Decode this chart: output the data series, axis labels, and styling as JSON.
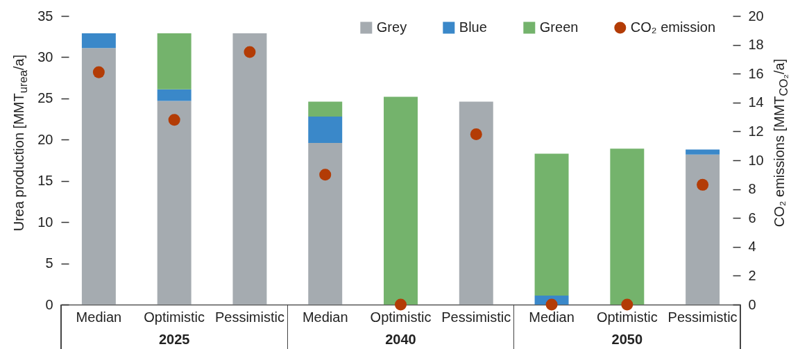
{
  "chart_data": {
    "type": "bar",
    "stacked": true,
    "categories": [
      "Median",
      "Optimistic",
      "Pessimistic",
      "Median",
      "Optimistic",
      "Pessimistic",
      "Median",
      "Optimistic",
      "Pessimistic"
    ],
    "series": [
      {
        "name": "Grey",
        "color": "#a5abb0",
        "values": [
          31.1,
          24.7,
          32.9,
          19.6,
          null,
          24.6,
          null,
          null,
          18.2
        ]
      },
      {
        "name": "Blue",
        "color": "#3a88c9",
        "values": [
          1.8,
          1.4,
          null,
          3.2,
          null,
          null,
          1.1,
          null,
          0.6
        ]
      },
      {
        "name": "Green",
        "color": "#74b36c",
        "values": [
          null,
          6.8,
          null,
          1.8,
          25.2,
          null,
          17.2,
          18.9,
          null
        ]
      },
      {
        "name": "CO₂ emission",
        "type": "scatter",
        "axis": "y2",
        "color": "#b33c06",
        "values": [
          16.1,
          12.8,
          17.5,
          9.0,
          0,
          11.8,
          0,
          0,
          8.3
        ]
      }
    ],
    "ylabel": "Urea production [MMT$_{urea}$/a]",
    "y2label": "CO₂ emissions [MMT$_{CO₂}$/a]",
    "ylim": [
      0,
      35
    ],
    "yticks": [
      0,
      5,
      10,
      15,
      20,
      25,
      30,
      35
    ],
    "y2lim": [
      0,
      20
    ],
    "y2ticks": [
      0,
      2,
      4,
      6,
      8,
      10,
      12,
      14,
      16,
      18,
      20
    ],
    "annotations": [
      "2025",
      "2040",
      "2050"
    ],
    "legend": "top right",
    "marker": "circle"
  }
}
